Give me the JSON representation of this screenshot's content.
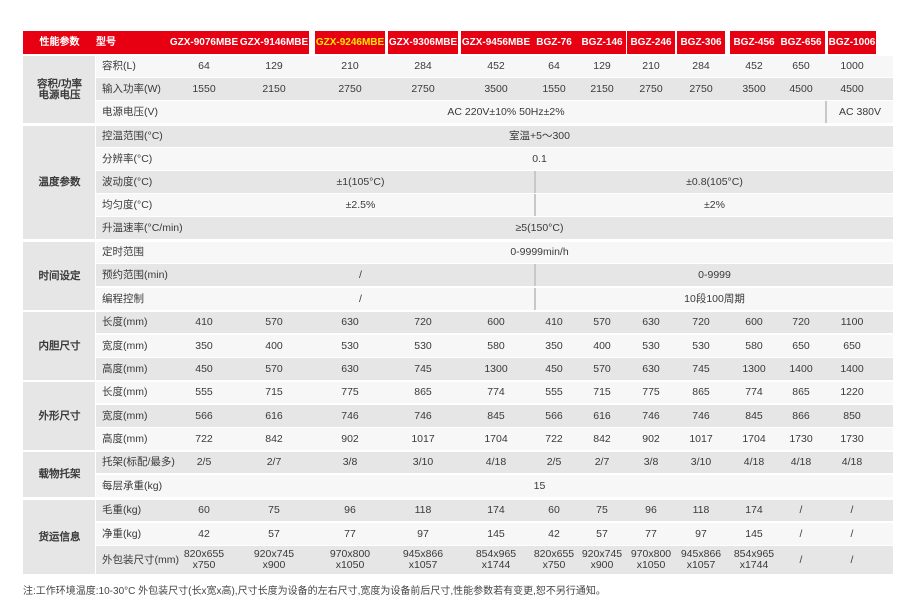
{
  "header": {
    "category": "性能参数",
    "model_label": "型号",
    "models": [
      "GZX-9076MBE",
      "GZX-9146MBE",
      "GZX-9246MBE",
      "GZX-9306MBE",
      "GZX-9456MBE",
      "BGZ-76",
      "BGZ-146",
      "BGZ-246",
      "BGZ-306",
      "BGZ-456",
      "BGZ-656",
      "BGZ-1006"
    ],
    "highlight_color": "#ffe600",
    "header_color": "#e60012"
  },
  "groups": [
    "容积/功率\n电源电压",
    "温度参数",
    "时间设定",
    "内胆尺寸",
    "外形尺寸",
    "载物托架",
    "货运信息"
  ],
  "rows": [
    {
      "label": "容积(L)",
      "values": [
        "64",
        "129",
        "210",
        "284",
        "452",
        "64",
        "129",
        "210",
        "284",
        "452",
        "650",
        "1000"
      ]
    },
    {
      "label": "输入功率(W)",
      "values": [
        "1550",
        "2150",
        "2750",
        "2750",
        "3500",
        "1550",
        "2150",
        "2750",
        "2750",
        "3500",
        "4500",
        "4500"
      ]
    },
    {
      "label": "电源电压(V)",
      "spans": [
        {
          "text": "AC 220V±10% 50Hz±2%"
        },
        {
          "text": "AC 380V"
        }
      ]
    },
    {
      "label": "控温范围(°C)",
      "spans": [
        {
          "text": "室温+5～300"
        }
      ]
    },
    {
      "label": "分辨率(°C)",
      "spans": [
        {
          "text": "0.1"
        }
      ]
    },
    {
      "label": "波动度(°C)",
      "spans": [
        {
          "text": "±1(105°C)"
        },
        {
          "text": "±0.8(105°C)"
        }
      ]
    },
    {
      "label": "均匀度(°C)",
      "spans": [
        {
          "text": "±2.5%"
        },
        {
          "text": "±2%"
        }
      ]
    },
    {
      "label": "升温速率(°C/min)",
      "spans": [
        {
          "text": "≥5(150°C)"
        }
      ]
    },
    {
      "label": "定时范围",
      "spans": [
        {
          "text": "0-9999min/h"
        }
      ]
    },
    {
      "label": "预约范围(min)",
      "spans": [
        {
          "text": "/"
        },
        {
          "text": "0-9999"
        }
      ]
    },
    {
      "label": "编程控制",
      "spans": [
        {
          "text": "/"
        },
        {
          "text": "10段100周期"
        }
      ]
    },
    {
      "label": "长度(mm)",
      "values": [
        "410",
        "570",
        "630",
        "720",
        "600",
        "410",
        "570",
        "630",
        "720",
        "600",
        "720",
        "1100"
      ]
    },
    {
      "label": "宽度(mm)",
      "values": [
        "350",
        "400",
        "530",
        "530",
        "580",
        "350",
        "400",
        "530",
        "530",
        "580",
        "650",
        "650"
      ]
    },
    {
      "label": "高度(mm)",
      "values": [
        "450",
        "570",
        "630",
        "745",
        "1300",
        "450",
        "570",
        "630",
        "745",
        "1300",
        "1400",
        "1400"
      ]
    },
    {
      "label": "长度(mm)",
      "values": [
        "555",
        "715",
        "775",
        "865",
        "774",
        "555",
        "715",
        "775",
        "865",
        "774",
        "865",
        "1220"
      ]
    },
    {
      "label": "宽度(mm)",
      "values": [
        "566",
        "616",
        "746",
        "746",
        "845",
        "566",
        "616",
        "746",
        "746",
        "845",
        "866",
        "850"
      ]
    },
    {
      "label": "高度(mm)",
      "values": [
        "722",
        "842",
        "902",
        "1017",
        "1704",
        "722",
        "842",
        "902",
        "1017",
        "1704",
        "1730",
        "1730"
      ]
    },
    {
      "label": "托架(标配/最多)",
      "values": [
        "2/5",
        "2/7",
        "3/8",
        "3/10",
        "4/18",
        "2/5",
        "2/7",
        "3/8",
        "3/10",
        "4/18",
        "4/18",
        "4/18"
      ]
    },
    {
      "label": "每层承重(kg)",
      "spans": [
        {
          "text": "15"
        }
      ]
    },
    {
      "label": "毛重(kg)",
      "values": [
        "60",
        "75",
        "96",
        "118",
        "174",
        "60",
        "75",
        "96",
        "118",
        "174",
        "/",
        "/"
      ]
    },
    {
      "label": "净重(kg)",
      "values": [
        "42",
        "57",
        "77",
        "97",
        "145",
        "42",
        "57",
        "77",
        "97",
        "145",
        "/",
        "/"
      ]
    },
    {
      "label": "外包装尺寸(mm)",
      "values": [
        "820x655\nx750",
        "920x745\nx900",
        "970x800\nx1050",
        "945x866\nx1057",
        "854x965\nx1744",
        "820x655\nx750",
        "920x745\nx900",
        "970x800\nx1050",
        "945x866\nx1057",
        "854x965\nx1744",
        "/",
        "/"
      ]
    }
  ],
  "note": "注:工作环境温度:10-30°C     外包装尺寸(长x宽x高),尺寸长度为设备的左右尺寸,宽度为设备前后尺寸,性能参数若有变更,恕不另行通知。"
}
